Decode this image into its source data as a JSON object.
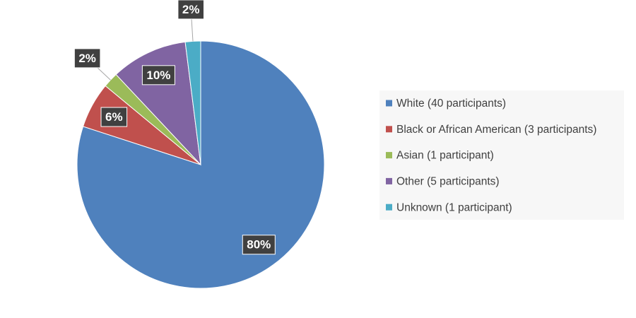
{
  "chart_data": {
    "type": "pie",
    "categories": [
      "White (40 participants)",
      "Black or African American (3 participants)",
      "Asian  (1 participant)",
      "Other (5 participants)",
      "Unknown (1 participant)"
    ],
    "values": [
      80,
      6,
      2,
      10,
      2
    ],
    "value_labels": [
      "80%",
      "6%",
      "2%",
      "10%",
      "2%"
    ],
    "colors": [
      "#4f81bd",
      "#c0504d",
      "#9bbb59",
      "#8064a2",
      "#4bacc6"
    ],
    "legend": "right"
  }
}
